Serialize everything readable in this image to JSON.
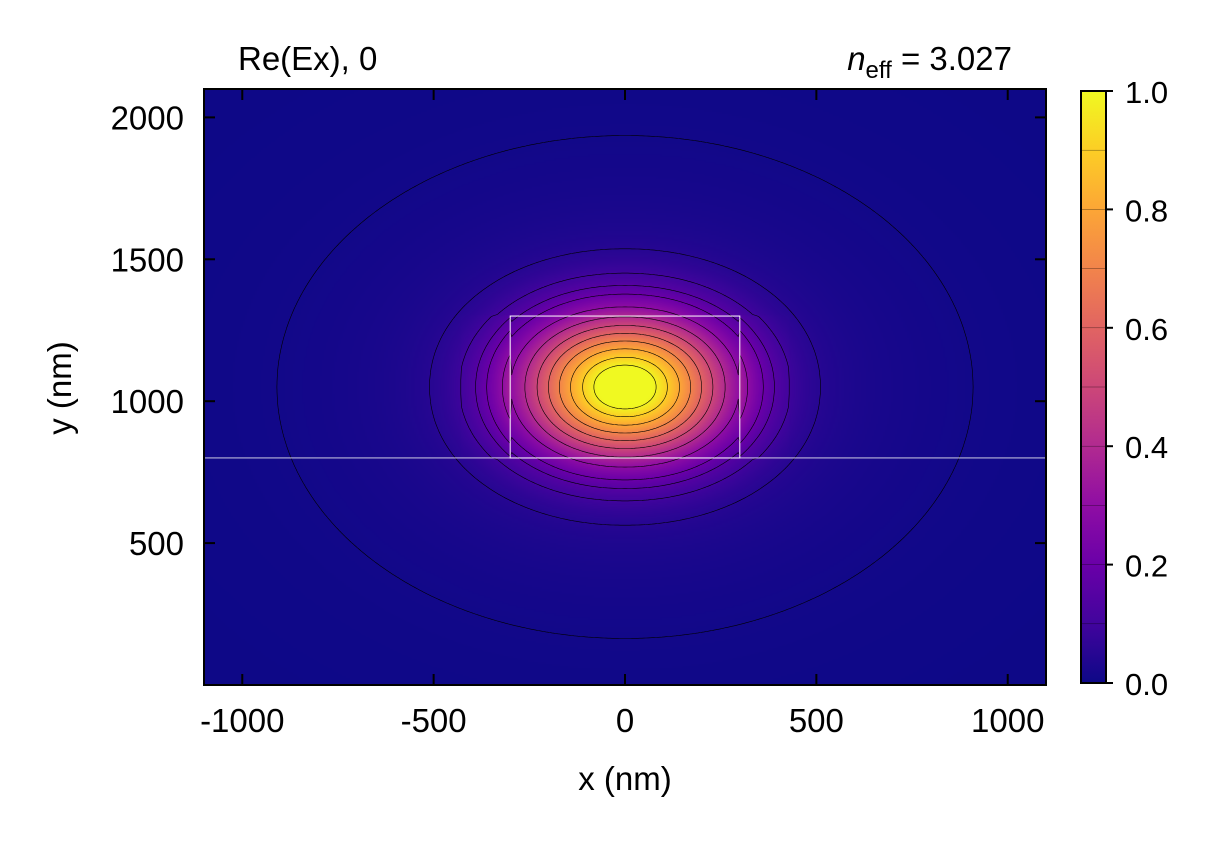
{
  "chart_data": {
    "type": "heatmap",
    "title_left": "Re(Ex), 0",
    "title_right_symbol": "n",
    "title_right_subscript": "eff",
    "title_right_value": " = 3.027",
    "xlabel": "x (nm)",
    "ylabel": "y (nm)",
    "xlim": [
      -1100,
      1100
    ],
    "ylim": [
      0,
      2100
    ],
    "xticks": [
      -1000,
      -500,
      0,
      500,
      1000
    ],
    "xtick_labels": [
      "-1000",
      "-500",
      "0",
      "500",
      "1000"
    ],
    "yticks": [
      500,
      1000,
      1500,
      2000
    ],
    "ytick_labels": [
      "500",
      "1000",
      "1500",
      "2000"
    ],
    "colorbar": {
      "range": [
        0.0,
        1.0
      ],
      "ticks": [
        0.0,
        0.2,
        0.4,
        0.6,
        0.8,
        1.0
      ],
      "tick_labels": [
        "0.0",
        "0.2",
        "0.4",
        "0.6",
        "0.8",
        "1.0"
      ],
      "colormap": "plasma",
      "levels": 10
    },
    "field_peak": {
      "x": 0,
      "y": 1050,
      "value": 1.0
    },
    "waveguide_core": {
      "x": [
        -300,
        300
      ],
      "y": [
        800,
        1300
      ]
    },
    "substrate_boundary_y": 800,
    "contour_levels": [
      0.01,
      0.05,
      0.1,
      0.15,
      0.2,
      0.3,
      0.4,
      0.5,
      0.6,
      0.7,
      0.8,
      0.9,
      0.98
    ],
    "grid": false
  }
}
